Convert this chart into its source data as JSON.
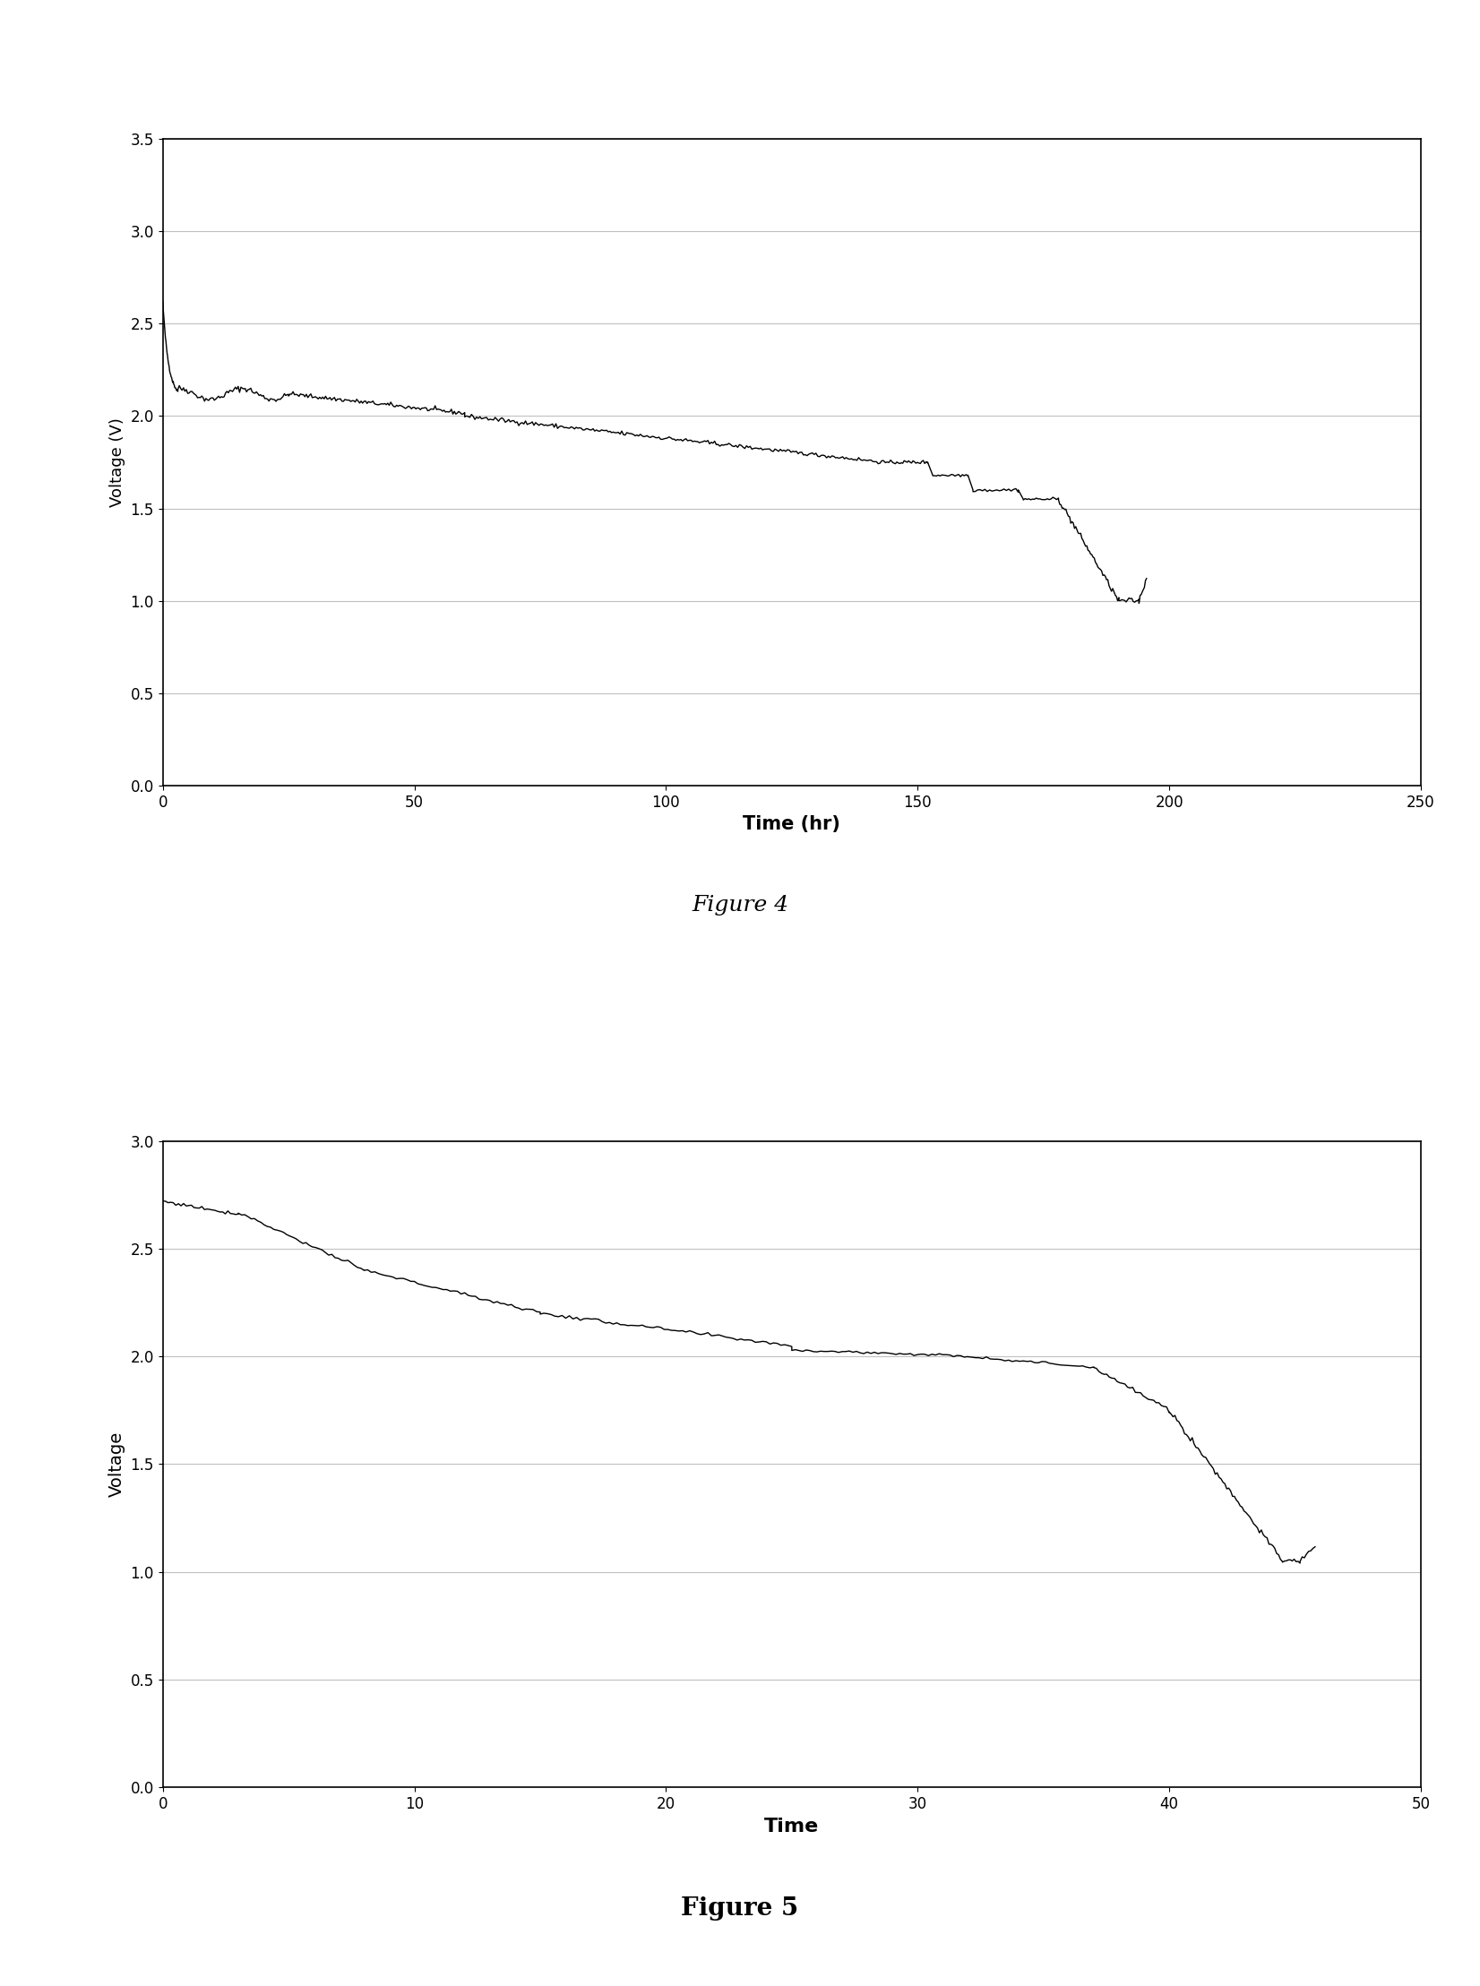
{
  "fig4": {
    "title": "Figure 4",
    "xlabel": "Time (hr)",
    "ylabel": "Voltage (V)",
    "xlim": [
      0,
      250
    ],
    "ylim": [
      0,
      3.5
    ],
    "xticks": [
      0,
      50,
      100,
      150,
      200,
      250
    ],
    "yticks": [
      0,
      0.5,
      1,
      1.5,
      2,
      2.5,
      3,
      3.5
    ],
    "title_fontsize": 18,
    "xlabel_fontsize": 15,
    "ylabel_fontsize": 13,
    "tick_fontsize": 12
  },
  "fig5": {
    "title": "Figure 5",
    "xlabel": "Time",
    "ylabel": "Voltage",
    "xlim": [
      0,
      50
    ],
    "ylim": [
      0,
      3
    ],
    "xticks": [
      0,
      10,
      20,
      30,
      40,
      50
    ],
    "yticks": [
      0,
      0.5,
      1,
      1.5,
      2,
      2.5,
      3
    ],
    "title_fontsize": 20,
    "xlabel_fontsize": 16,
    "ylabel_fontsize": 14,
    "tick_fontsize": 12
  },
  "line_color": "#000000",
  "background_color": "#ffffff",
  "grid_color": "#c0c0c0"
}
